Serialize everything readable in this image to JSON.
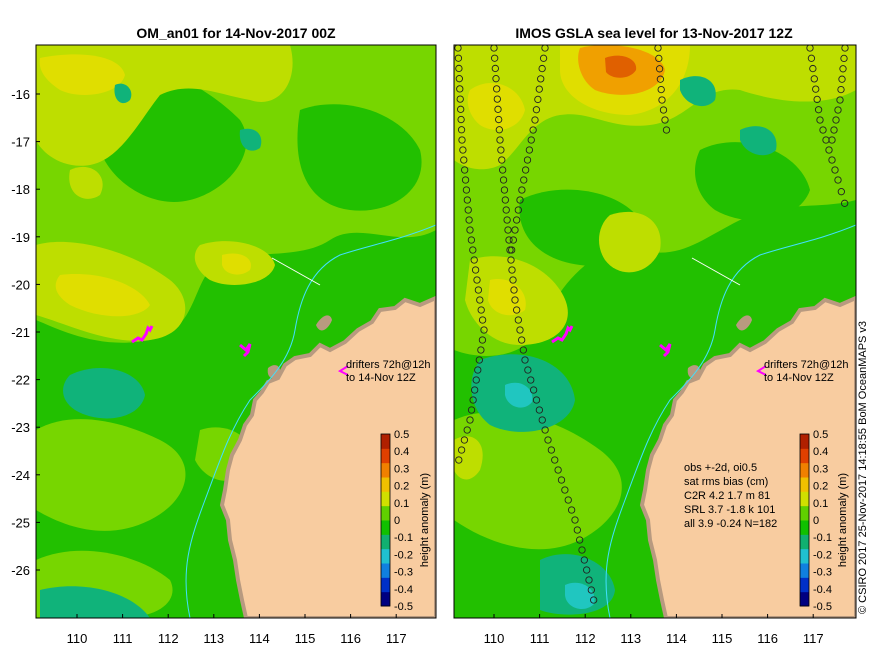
{
  "panels": [
    {
      "id": "left",
      "title": "OM_an01 for 14-Nov-2017 00Z",
      "drifter_note": [
        "drifters 72h@12h",
        "to 14-Nov 12Z"
      ],
      "colorbar_label": "height anomaly (m)"
    },
    {
      "id": "right",
      "title": "IMOS GSLA sea level  for 13-Nov-2017 12Z",
      "drifter_note": [
        "drifters 72h@12h",
        "to 14-Nov 12Z"
      ],
      "colorbar_label": "height anomaly (m)",
      "stats": {
        "lines": [
          "obs +-2d, oi0.5",
          "sat rms bias (cm)",
          "C2R   4.2  1.7  m 81",
          "SRL    3.7  -1.8  k 101",
          "all    3.9  -0.24  N=182"
        ]
      }
    }
  ],
  "lat_ticks": [
    "-16",
    "-17",
    "-18",
    "-19",
    "-20",
    "-21",
    "-22",
    "-23",
    "-24",
    "-25",
    "-26"
  ],
  "left_lon_ticks": [
    "110",
    "111",
    "112",
    "113",
    "114",
    "115",
    "116",
    "117"
  ],
  "right_lon_ticks": [
    "110",
    "111",
    "112",
    "113",
    "114",
    "115",
    "116",
    "117"
  ],
  "colorbar_ticks": [
    "0.5",
    "0.4",
    "0.3",
    "0.2",
    "0.1",
    "0",
    "-0.1",
    "-0.2",
    "-0.3",
    "-0.4",
    "-0.5"
  ],
  "colorbar_colors": [
    "#000080",
    "#0030c8",
    "#1080e0",
    "#20c0d0",
    "#10b070",
    "#10c000",
    "#60d000",
    "#d0e000",
    "#f0c000",
    "#f08000",
    "#e04000",
    "#b02000"
  ],
  "credit": "© CSIRO 2017   25-Nov-2017 14:18:55 BoM OceanMAPS v3",
  "colors": {
    "ocean": "#22c000",
    "light_green": "#77d600",
    "yellow_green": "#bede00",
    "yellow": "#e0de00",
    "orange": "#f0a000",
    "teal": "#10b37a",
    "cyan": "#20c6c0",
    "land": "#f8cca0",
    "coast": "#b89a80",
    "drifter": "#ff00ff",
    "river": "#40e0ff"
  }
}
